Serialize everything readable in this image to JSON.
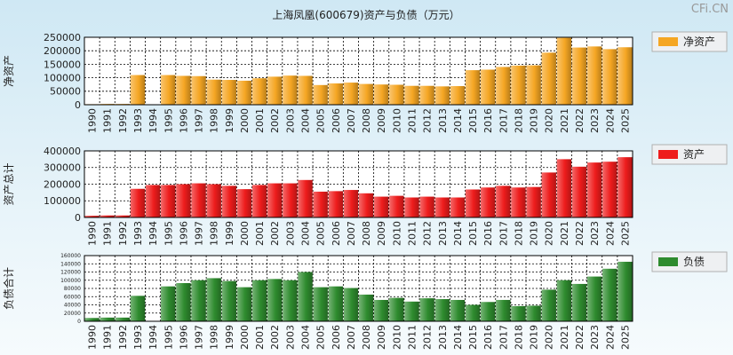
{
  "title": "上海凤凰(600679)资产与负债（万元）",
  "watermark": "CFi.CN",
  "years": [
    "1990",
    "1991",
    "1992",
    "1993",
    "1994",
    "1995",
    "1996",
    "1997",
    "1998",
    "1999",
    "2000",
    "2001",
    "2002",
    "2003",
    "2004",
    "2005",
    "2006",
    "2007",
    "2008",
    "2009",
    "2010",
    "2011",
    "2012",
    "2013",
    "2014",
    "2015",
    "2016",
    "2017",
    "2018",
    "2019",
    "2020",
    "2021",
    "2022",
    "2023",
    "2024",
    "2025"
  ],
  "chart_data": [
    {
      "type": "bar",
      "name": "net-assets",
      "title": "上海凤凰(600679)资产与负债（万元）",
      "ylabel": "净资产",
      "legend": "净资产",
      "color": "#f5a623",
      "ylim": [
        0,
        250000
      ],
      "yticks": [
        0,
        50000,
        100000,
        150000,
        200000,
        250000
      ],
      "categories": [
        "1990",
        "1991",
        "1992",
        "1993",
        "1994",
        "1995",
        "1996",
        "1997",
        "1998",
        "1999",
        "2000",
        "2001",
        "2002",
        "2003",
        "2004",
        "2005",
        "2006",
        "2007",
        "2008",
        "2009",
        "2010",
        "2011",
        "2012",
        "2013",
        "2014",
        "2015",
        "2016",
        "2017",
        "2018",
        "2019",
        "2020",
        "2021",
        "2022",
        "2023",
        "2024",
        "2025"
      ],
      "values": [
        2000,
        3000,
        3000,
        110000,
        null,
        110000,
        107000,
        106000,
        93000,
        92000,
        89000,
        98000,
        104000,
        108000,
        107000,
        73000,
        79000,
        82000,
        77000,
        75000,
        74000,
        70000,
        70000,
        68000,
        69000,
        128000,
        130000,
        140000,
        145000,
        146000,
        193000,
        248000,
        212000,
        216000,
        206000,
        213000
      ]
    },
    {
      "type": "bar",
      "name": "total-assets",
      "ylabel": "资产总计",
      "legend": "资产",
      "color": "#ee1c1c",
      "ylim": [
        0,
        400000
      ],
      "yticks": [
        0,
        100000,
        200000,
        300000,
        400000
      ],
      "categories": [
        "1990",
        "1991",
        "1992",
        "1993",
        "1994",
        "1995",
        "1996",
        "1997",
        "1998",
        "1999",
        "2000",
        "2001",
        "2002",
        "2003",
        "2004",
        "2005",
        "2006",
        "2007",
        "2008",
        "2009",
        "2010",
        "2011",
        "2012",
        "2013",
        "2014",
        "2015",
        "2016",
        "2017",
        "2018",
        "2019",
        "2020",
        "2021",
        "2022",
        "2023",
        "2024",
        "2025"
      ],
      "values": [
        10000,
        12000,
        12000,
        172000,
        195000,
        195000,
        200000,
        205000,
        200000,
        190000,
        170000,
        195000,
        205000,
        205000,
        225000,
        155000,
        158000,
        165000,
        145000,
        125000,
        130000,
        120000,
        125000,
        120000,
        120000,
        168000,
        180000,
        190000,
        180000,
        183000,
        270000,
        350000,
        305000,
        330000,
        335000,
        362000
      ]
    },
    {
      "type": "bar",
      "name": "total-liabilities",
      "ylabel": "负债合计",
      "legend": "负债",
      "color": "#2e8b2e",
      "ylim": [
        0,
        160000
      ],
      "yticks": [
        0,
        20000,
        40000,
        60000,
        80000,
        100000,
        120000,
        140000,
        160000
      ],
      "categories": [
        "1990",
        "1991",
        "1992",
        "1993",
        "1994",
        "1995",
        "1996",
        "1997",
        "1998",
        "1999",
        "2000",
        "2001",
        "2002",
        "2003",
        "2004",
        "2005",
        "2006",
        "2007",
        "2008",
        "2009",
        "2010",
        "2011",
        "2012",
        "2013",
        "2014",
        "2015",
        "2016",
        "2017",
        "2018",
        "2019",
        "2020",
        "2021",
        "2022",
        "2023",
        "2024",
        "2025"
      ],
      "values": [
        8000,
        9000,
        9000,
        62000,
        null,
        85000,
        93000,
        100000,
        105000,
        98000,
        83000,
        100000,
        103000,
        100000,
        120000,
        83000,
        85000,
        81000,
        65000,
        52000,
        57000,
        48000,
        56000,
        54000,
        52000,
        40000,
        47000,
        52000,
        37000,
        38000,
        77000,
        100000,
        91000,
        109000,
        128000,
        145000
      ]
    }
  ]
}
